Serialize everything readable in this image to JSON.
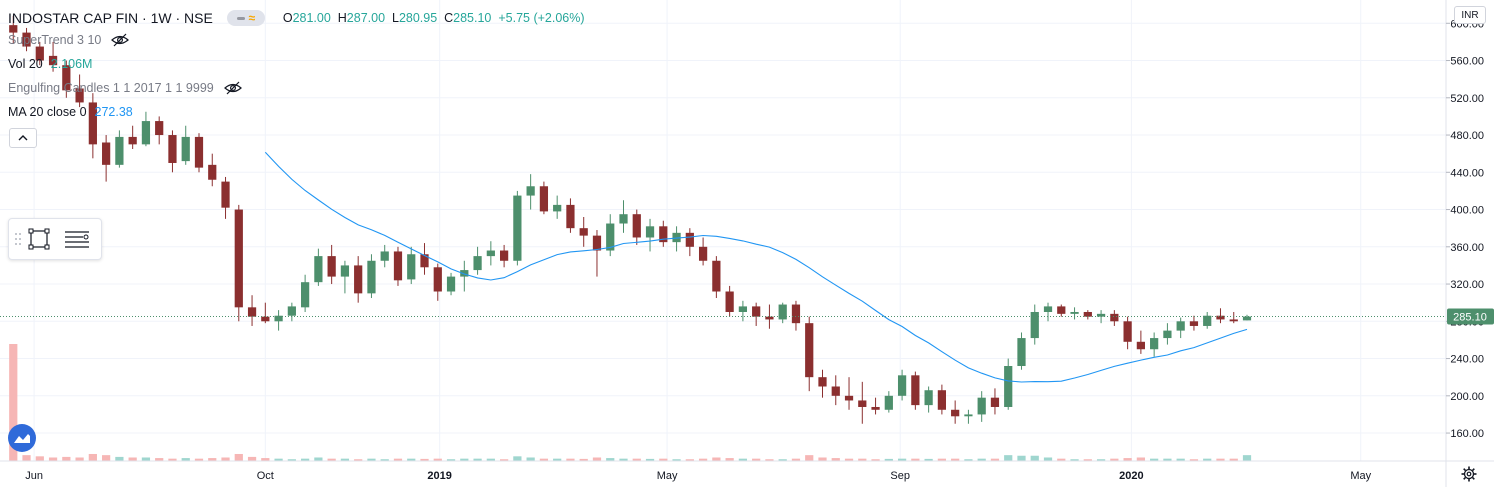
{
  "header": {
    "symbol_title": "INDOSTAR CAP FIN · 1W · NSE",
    "ohlc": [
      {
        "label": "O",
        "value": "281.00"
      },
      {
        "label": "H",
        "value": "287.00"
      },
      {
        "label": "L",
        "value": "280.95"
      },
      {
        "label": "C",
        "value": "285.10"
      },
      {
        "label": "",
        "value": "+5.75 (+2.06%)"
      }
    ]
  },
  "indicators": {
    "supertrend": {
      "name": "SuperTrend 3 10",
      "icon": "eye-off-icon"
    },
    "volume": {
      "name": "Vol 20",
      "value": "2.106M"
    },
    "engulfing": {
      "name": "Engulfing Candles 1 1 2017 1 1 9999",
      "icon": "eye-off-icon"
    },
    "ma": {
      "name": "MA 20 close 0",
      "value": "272.38"
    }
  },
  "currency": "INR",
  "colors": {
    "up": "#26a69a",
    "down": "#ef5350",
    "up_candle": "#4d8f6c",
    "down_candle": "#8b2f2f",
    "ma": "#2196f3",
    "last_price_bg": "#4d8f6c",
    "vol_up": "#9fd6cf",
    "vol_down": "#f6b6b5"
  },
  "chart_data": {
    "type": "candlestick",
    "timeframe": "1W",
    "y_tick_labels": [
      "600.00",
      "560.00",
      "520.00",
      "480.00",
      "440.00",
      "400.00",
      "360.00",
      "320.00",
      "280.00",
      "240.00",
      "200.00",
      "160.00"
    ],
    "y_ticks": [
      600,
      560,
      520,
      480,
      440,
      400,
      360,
      320,
      280,
      240,
      200,
      160
    ],
    "ylim": [
      130,
      625
    ],
    "x_tick_labels": [
      "Jun",
      "Oct",
      "2019",
      "May",
      "Sep",
      "2020",
      "May"
    ],
    "x_ticks": [
      "2018-06-01",
      "2018-10-01",
      "2019-01-01",
      "2019-05-01",
      "2019-09-01",
      "2020-01-01",
      "2020-05-01"
    ],
    "x_range": [
      "2018-05-14",
      "2020-06-15"
    ],
    "first_bar_date": "2018-05-21",
    "bar_interval": "1W",
    "last_price": "285.10",
    "ma_period": 20,
    "candles": [
      [
        598,
        608,
        578,
        590,
        1.0
      ],
      [
        590,
        595,
        570,
        575,
        0.05
      ],
      [
        575,
        580,
        555,
        560,
        0.04
      ],
      [
        565,
        580,
        548,
        555,
        0.03
      ],
      [
        555,
        560,
        520,
        528,
        0.035
      ],
      [
        530,
        545,
        510,
        515,
        0.03
      ],
      [
        515,
        525,
        455,
        470,
        0.06
      ],
      [
        472,
        480,
        430,
        448,
        0.05
      ],
      [
        448,
        485,
        445,
        478,
        0.035
      ],
      [
        478,
        490,
        465,
        470,
        0.03
      ],
      [
        470,
        505,
        468,
        495,
        0.03
      ],
      [
        495,
        500,
        470,
        480,
        0.025
      ],
      [
        480,
        485,
        440,
        450,
        0.02
      ],
      [
        452,
        490,
        448,
        478,
        0.025
      ],
      [
        478,
        482,
        440,
        445,
        0.02
      ],
      [
        448,
        460,
        425,
        432,
        0.025
      ],
      [
        430,
        435,
        390,
        402,
        0.03
      ],
      [
        400,
        405,
        280,
        295,
        0.06
      ],
      [
        295,
        308,
        275,
        285,
        0.035
      ],
      [
        285,
        300,
        278,
        280,
        0.025
      ],
      [
        280,
        292,
        270,
        286,
        0.02
      ],
      [
        286,
        300,
        280,
        296,
        0.015
      ],
      [
        295,
        330,
        290,
        322,
        0.02
      ],
      [
        322,
        358,
        318,
        350,
        0.03
      ],
      [
        350,
        362,
        320,
        328,
        0.02
      ],
      [
        328,
        345,
        310,
        340,
        0.02
      ],
      [
        340,
        350,
        300,
        310,
        0.015
      ],
      [
        310,
        352,
        305,
        345,
        0.02
      ],
      [
        345,
        362,
        338,
        355,
        0.015
      ],
      [
        355,
        360,
        318,
        324,
        0.02
      ],
      [
        325,
        360,
        320,
        352,
        0.02
      ],
      [
        352,
        364,
        330,
        338,
        0.018
      ],
      [
        338,
        342,
        302,
        312,
        0.02
      ],
      [
        312,
        332,
        308,
        328,
        0.015
      ],
      [
        328,
        345,
        312,
        335,
        0.02
      ],
      [
        335,
        360,
        330,
        350,
        0.02
      ],
      [
        350,
        366,
        340,
        356,
        0.02
      ],
      [
        356,
        362,
        338,
        345,
        0.015
      ],
      [
        345,
        420,
        340,
        415,
        0.04
      ],
      [
        415,
        438,
        400,
        425,
        0.03
      ],
      [
        425,
        430,
        395,
        398,
        0.02
      ],
      [
        398,
        415,
        390,
        405,
        0.02
      ],
      [
        405,
        412,
        375,
        380,
        0.02
      ],
      [
        380,
        392,
        360,
        372,
        0.018
      ],
      [
        372,
        378,
        328,
        356,
        0.03
      ],
      [
        356,
        395,
        350,
        385,
        0.025
      ],
      [
        385,
        410,
        375,
        395,
        0.02
      ],
      [
        395,
        400,
        362,
        370,
        0.02
      ],
      [
        370,
        390,
        355,
        382,
        0.018
      ],
      [
        382,
        388,
        360,
        365,
        0.02
      ],
      [
        365,
        382,
        355,
        375,
        0.015
      ],
      [
        375,
        380,
        350,
        360,
        0.015
      ],
      [
        360,
        370,
        340,
        345,
        0.02
      ],
      [
        345,
        350,
        305,
        312,
        0.03
      ],
      [
        312,
        318,
        285,
        290,
        0.025
      ],
      [
        290,
        302,
        280,
        296,
        0.02
      ],
      [
        296,
        300,
        275,
        285,
        0.02
      ],
      [
        285,
        298,
        272,
        282,
        0.015
      ],
      [
        282,
        300,
        278,
        298,
        0.015
      ],
      [
        298,
        302,
        270,
        278,
        0.02
      ],
      [
        278,
        285,
        205,
        220,
        0.05
      ],
      [
        220,
        228,
        198,
        210,
        0.03
      ],
      [
        210,
        222,
        190,
        200,
        0.025
      ],
      [
        200,
        220,
        185,
        195,
        0.02
      ],
      [
        195,
        215,
        170,
        188,
        0.02
      ],
      [
        188,
        198,
        180,
        185,
        0.015
      ],
      [
        185,
        205,
        182,
        200,
        0.018
      ],
      [
        200,
        228,
        195,
        222,
        0.02
      ],
      [
        222,
        226,
        185,
        190,
        0.02
      ],
      [
        190,
        210,
        182,
        206,
        0.018
      ],
      [
        206,
        212,
        180,
        185,
        0.02
      ],
      [
        185,
        195,
        170,
        178,
        0.02
      ],
      [
        178,
        185,
        170,
        180,
        0.015
      ],
      [
        180,
        205,
        172,
        198,
        0.02
      ],
      [
        198,
        208,
        180,
        188,
        0.02
      ],
      [
        188,
        240,
        185,
        232,
        0.05
      ],
      [
        232,
        268,
        228,
        262,
        0.045
      ],
      [
        262,
        298,
        255,
        290,
        0.045
      ],
      [
        290,
        300,
        280,
        296,
        0.03
      ],
      [
        296,
        298,
        285,
        288,
        0.02
      ],
      [
        288,
        295,
        282,
        290,
        0.015
      ],
      [
        290,
        292,
        282,
        285,
        0.015
      ],
      [
        285,
        292,
        278,
        288,
        0.015
      ],
      [
        288,
        292,
        275,
        280,
        0.02
      ],
      [
        280,
        285,
        250,
        258,
        0.025
      ],
      [
        258,
        270,
        245,
        250,
        0.03
      ],
      [
        250,
        268,
        242,
        262,
        0.02
      ],
      [
        262,
        278,
        255,
        270,
        0.02
      ],
      [
        270,
        284,
        262,
        280,
        0.02
      ],
      [
        280,
        286,
        270,
        275,
        0.015
      ],
      [
        275,
        290,
        272,
        286,
        0.02
      ],
      [
        286,
        294,
        278,
        282,
        0.02
      ],
      [
        282,
        290,
        278,
        280,
        0.02
      ],
      [
        281,
        287,
        280.95,
        285.1,
        0.05
      ]
    ]
  }
}
